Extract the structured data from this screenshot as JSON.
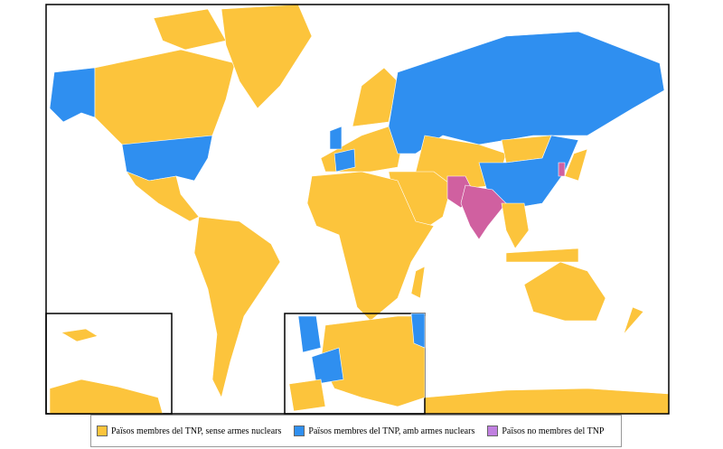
{
  "legend": {
    "items": [
      {
        "label": "Països membres del TNP, sense armes nuclears",
        "color": "#fcc43c"
      },
      {
        "label": "Països membres del TNP, amb armes nuclears",
        "color": "#2f8ff0"
      },
      {
        "label": "Països no  membres del TNP",
        "color": "#c080e0"
      }
    ]
  }
}
